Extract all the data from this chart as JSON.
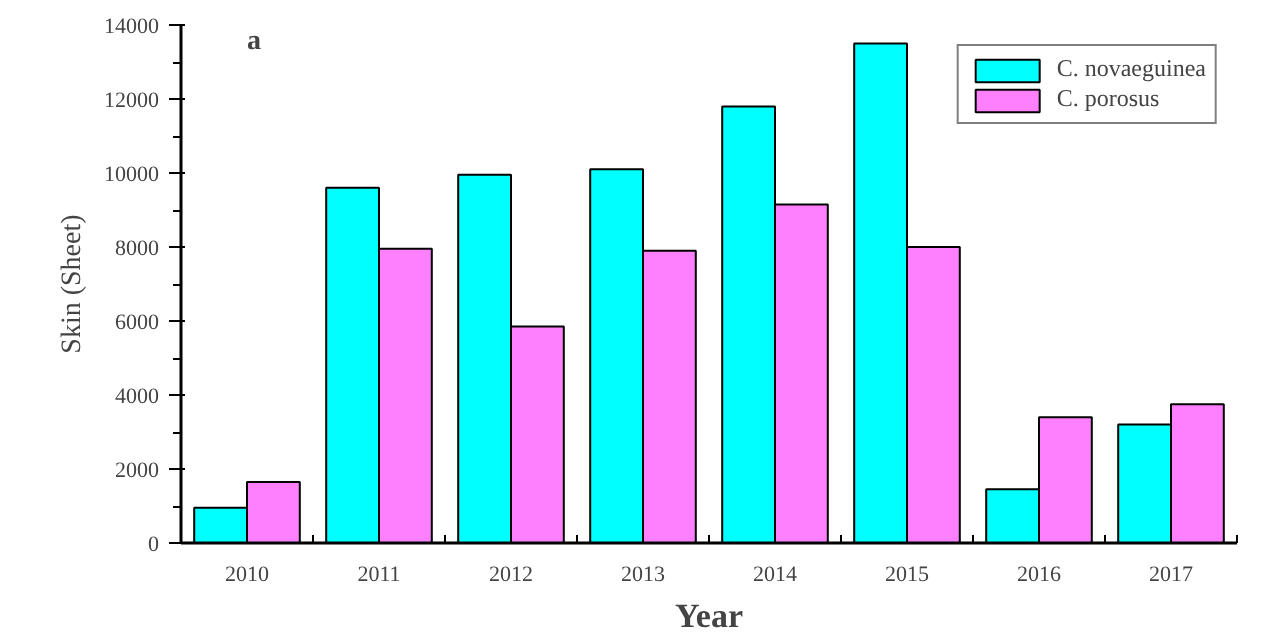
{
  "chart_data": {
    "type": "bar",
    "xlabel": "Year",
    "ylabel": "Skin (Sheet)",
    "annotations": [
      "a"
    ],
    "categories": [
      "2010",
      "2011",
      "2012",
      "2013",
      "2014",
      "2015",
      "2016",
      "2017"
    ],
    "series": [
      {
        "name": "C. novaeguinea",
        "color": "#00ffff",
        "values": [
          950,
          9600,
          9950,
          10100,
          11800,
          13500,
          1450,
          3200
        ]
      },
      {
        "name": "C. porosus",
        "color": "#ff80ff",
        "values": [
          1650,
          7950,
          5850,
          7900,
          9150,
          8000,
          3400,
          3750
        ]
      }
    ],
    "ylim": [
      0,
      14000
    ],
    "yticks": [
      0,
      2000,
      4000,
      6000,
      8000,
      10000,
      12000,
      14000
    ],
    "grid": false,
    "legend": "top right"
  }
}
